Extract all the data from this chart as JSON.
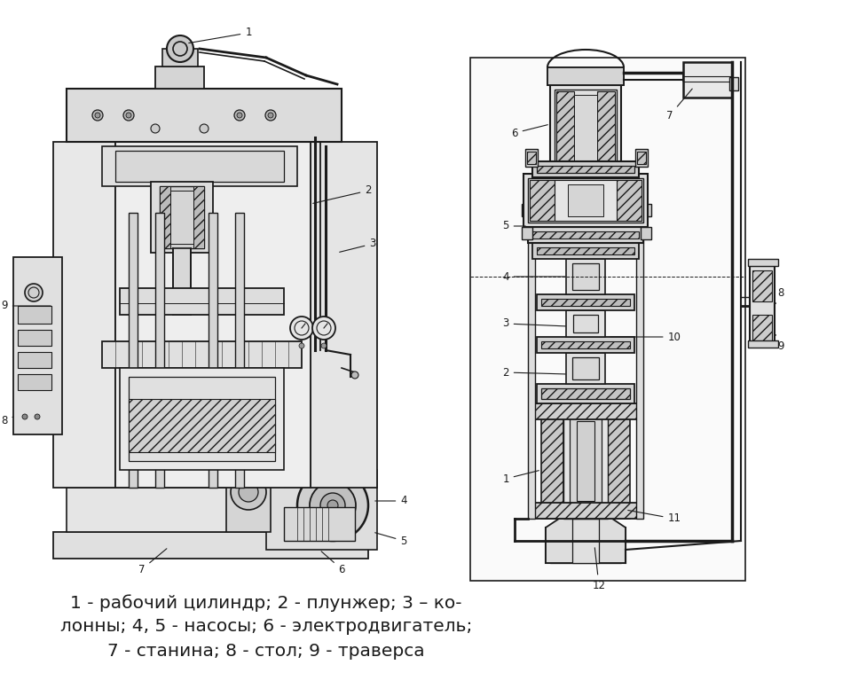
{
  "background_color": "#ffffff",
  "caption_line1": "1 - рабочий цилиндр; 2 - плунжер; 3 – ко-",
  "caption_line2": "лонны; 4, 5 - насосы; 6 - электродвигатель;",
  "caption_line3": "7 - станина; 8 - стол; 9 - траверса",
  "caption_fontsize": 14.5,
  "fig_width": 9.67,
  "fig_height": 7.85,
  "dpi": 100
}
